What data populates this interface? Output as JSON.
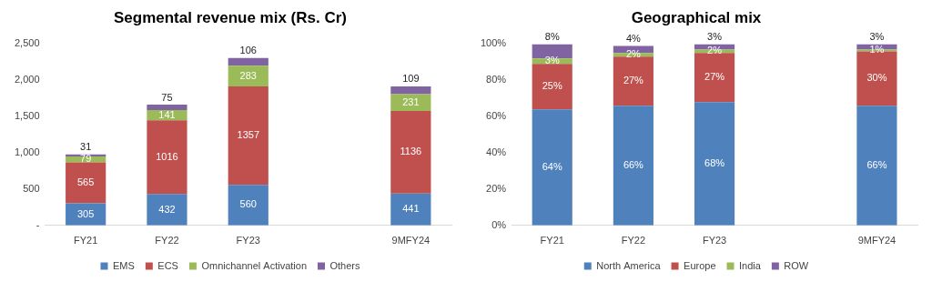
{
  "chart_data": [
    {
      "type": "bar",
      "title": "Segmental revenue mix (Rs. Cr)",
      "categories": [
        "FY21",
        "FY22",
        "FY23",
        null,
        "9MFY24"
      ],
      "series": [
        {
          "name": "EMS",
          "color": "#4f81bd",
          "values": [
            305,
            432,
            560,
            null,
            441
          ]
        },
        {
          "name": "ECS",
          "color": "#c0504d",
          "values": [
            565,
            1016,
            1357,
            null,
            1136
          ]
        },
        {
          "name": "Omnichannel Activation",
          "color": "#9bbb59",
          "values": [
            79,
            141,
            283,
            null,
            231
          ]
        },
        {
          "name": "Others",
          "color": "#8064a2",
          "values": [
            31,
            75,
            106,
            null,
            109
          ]
        }
      ],
      "ylim": [
        0,
        2500
      ],
      "yticks": [
        {
          "value": 0,
          "label": "-"
        },
        500,
        {
          "value": 1000,
          "label": "1,000"
        },
        {
          "value": 1500,
          "label": "1,500"
        },
        {
          "value": 2000,
          "label": "2,000"
        },
        {
          "value": 2500,
          "label": "2,500"
        }
      ],
      "stacked": true,
      "data_labels": true,
      "grid": false,
      "legend": "bottom"
    },
    {
      "type": "bar",
      "title": "Geographical mix",
      "categories": [
        "FY21",
        "FY22",
        "FY23",
        null,
        "9MFY24"
      ],
      "series": [
        {
          "name": "North America",
          "color": "#4f81bd",
          "values": [
            64,
            66,
            68,
            null,
            66
          ],
          "value_labels": [
            "64%",
            "66%",
            "68%",
            null,
            "66%"
          ]
        },
        {
          "name": "Europe",
          "color": "#c0504d",
          "values": [
            25,
            27,
            27,
            null,
            30
          ],
          "value_labels": [
            "25%",
            "27%",
            "27%",
            null,
            "30%"
          ]
        },
        {
          "name": "India",
          "color": "#9bbb59",
          "values": [
            3,
            2,
            2,
            null,
            1
          ],
          "value_labels": [
            "3%",
            "2%",
            "2%",
            null,
            "1%"
          ]
        },
        {
          "name": "ROW",
          "color": "#8064a2",
          "values": [
            8,
            4,
            3,
            null,
            3
          ],
          "value_labels": [
            "8%",
            "4%",
            "3%",
            null,
            "3%"
          ]
        }
      ],
      "ylim": [
        0,
        100
      ],
      "yticks": [
        {
          "value": 0,
          "label": "0%"
        },
        {
          "value": 20,
          "label": "20%"
        },
        {
          "value": 40,
          "label": "40%"
        },
        {
          "value": 60,
          "label": "60%"
        },
        {
          "value": 80,
          "label": "80%"
        },
        {
          "value": 100,
          "label": "100%"
        }
      ],
      "stacked": true,
      "data_labels": true,
      "grid": false,
      "legend": "bottom"
    }
  ]
}
